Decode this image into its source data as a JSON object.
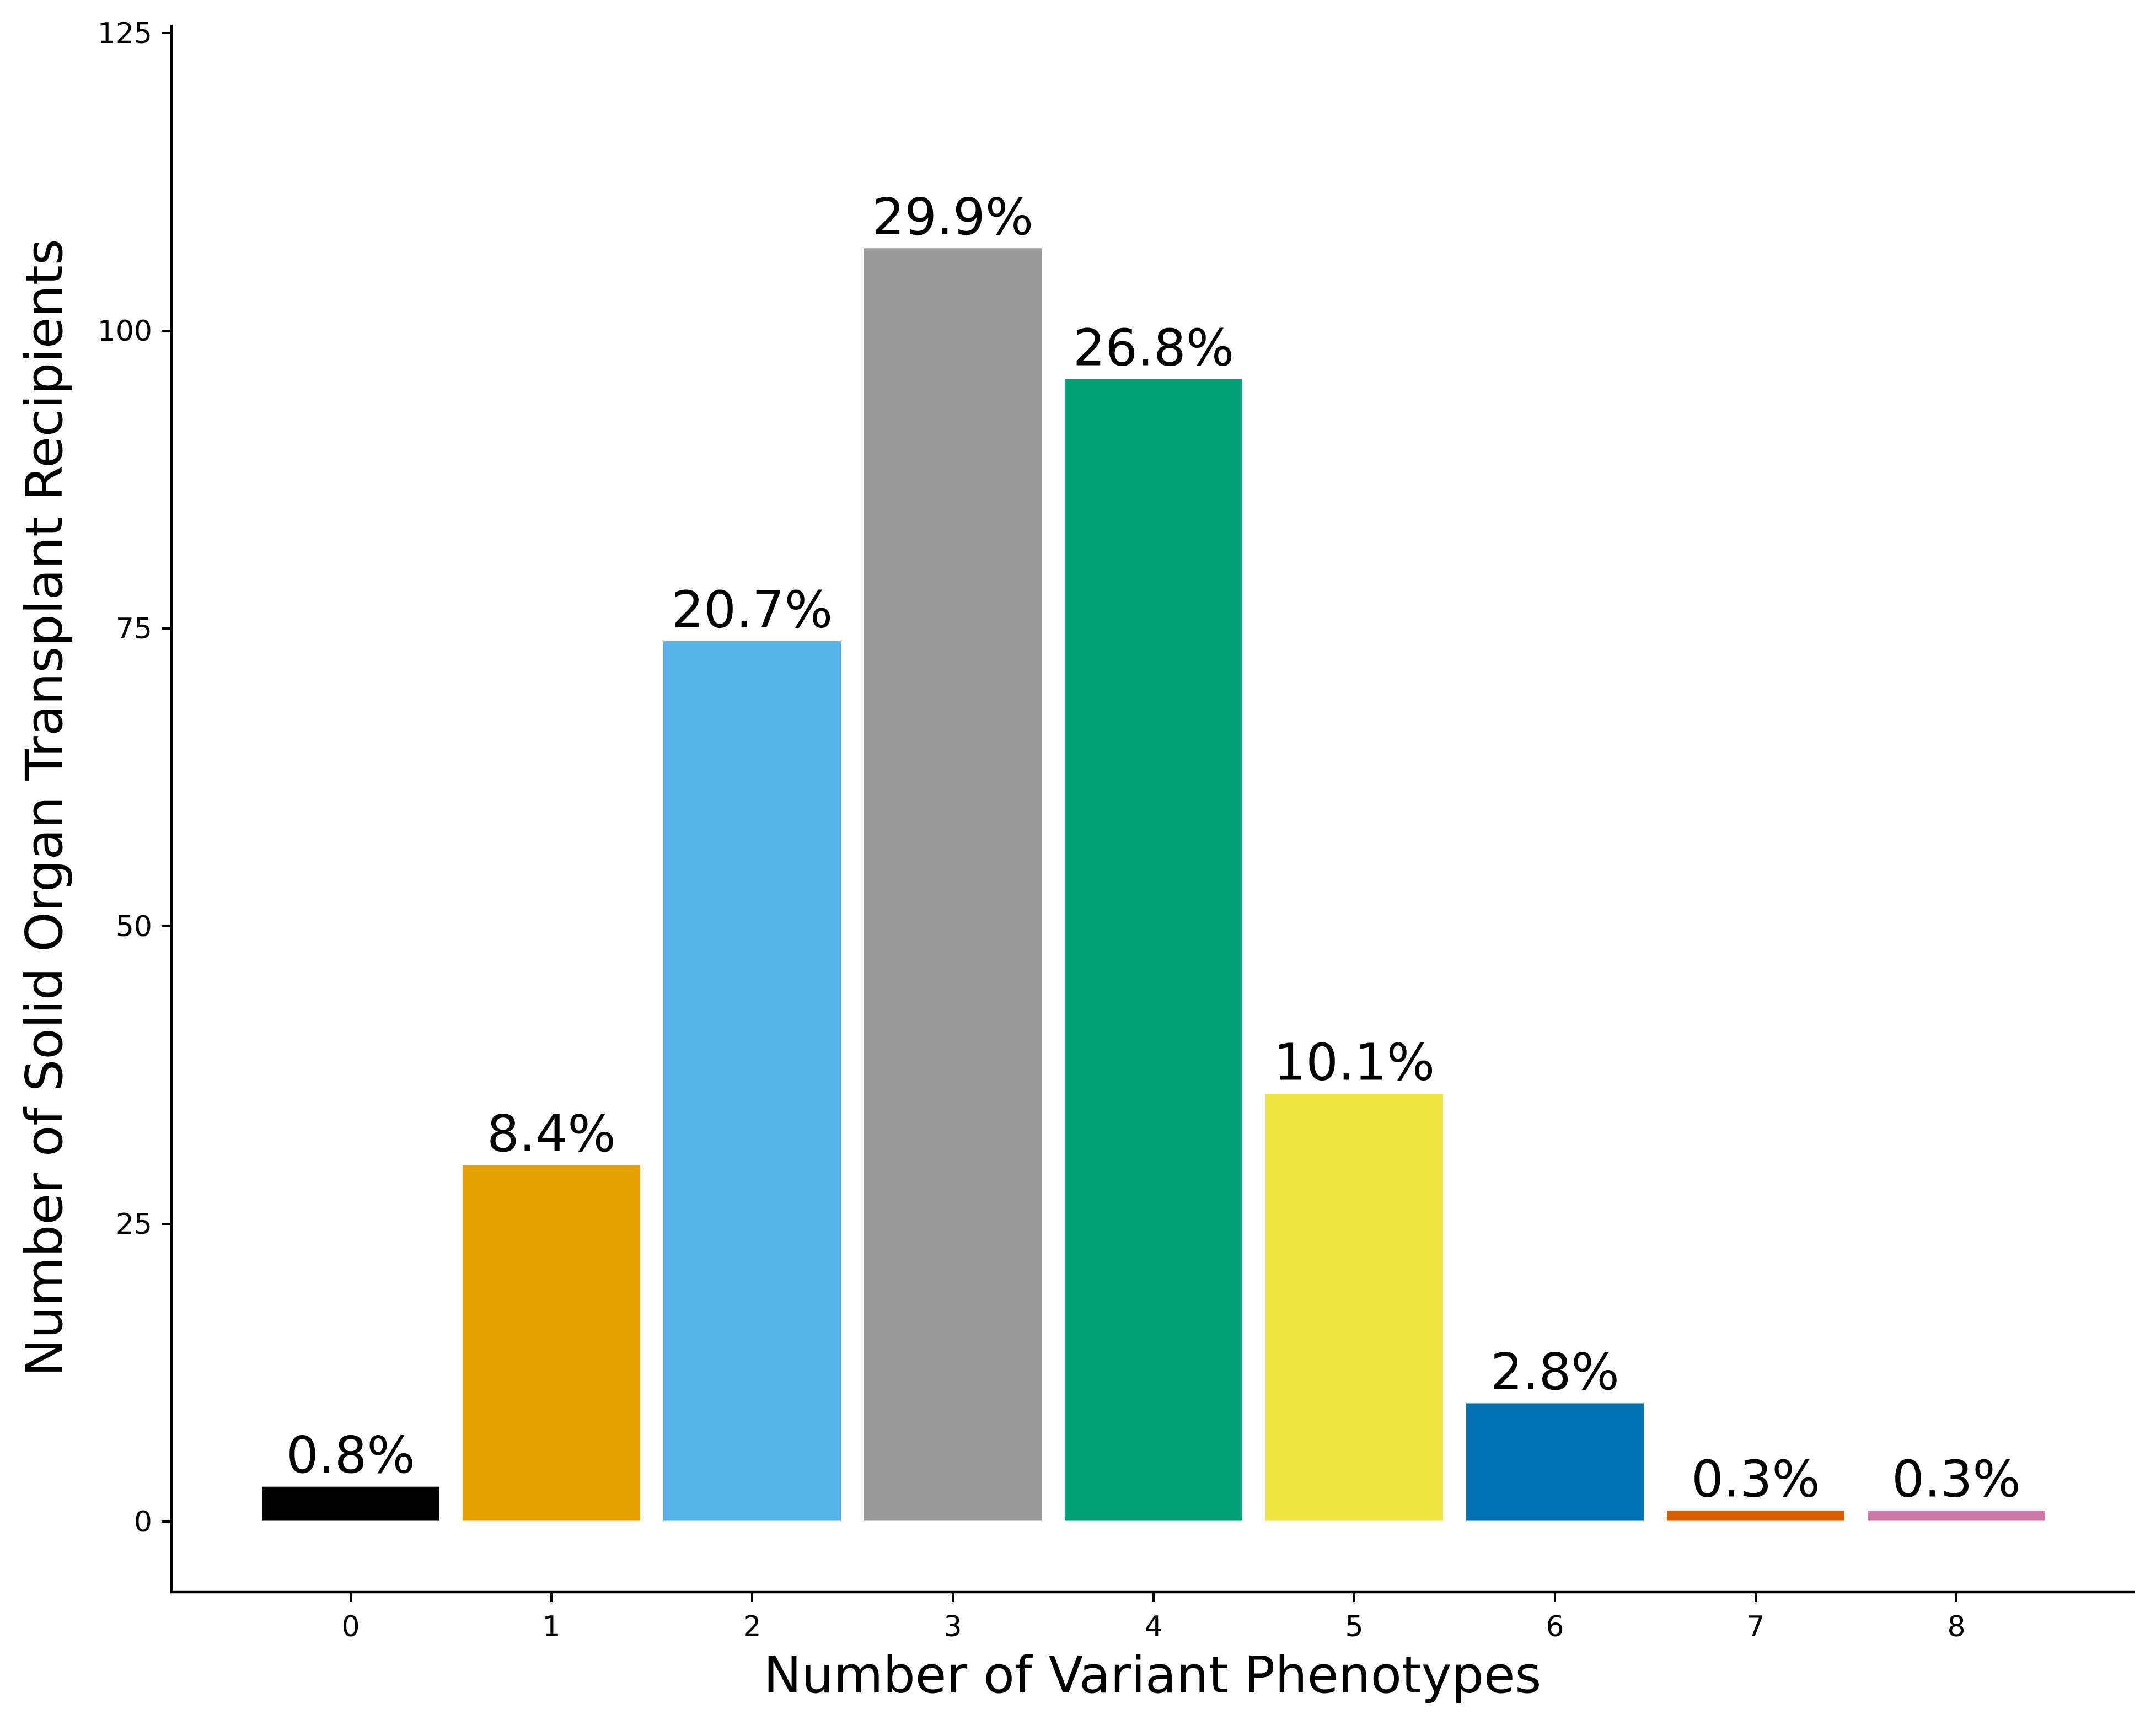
{
  "chart_data": {
    "type": "bar",
    "title": "",
    "xlabel": "Number of Variant Phenotypes",
    "ylabel": "Number of Solid Organ Transplant Recipients",
    "categories": [
      "0",
      "1",
      "2",
      "3",
      "4",
      "5",
      "6",
      "7",
      "8"
    ],
    "values": [
      3,
      30,
      74,
      107,
      96,
      36,
      10,
      1,
      1
    ],
    "data_labels": [
      "0.8%",
      "8.4%",
      "20.7%",
      "29.9%",
      "26.8%",
      "10.1%",
      "2.8%",
      "0.3%",
      "0.3%"
    ],
    "colors": [
      "#000000",
      "#E69F00",
      "#56B4E9",
      "#999999",
      "#009E73",
      "#F0E442",
      "#0072B2",
      "#D55E00",
      "#CC79A7"
    ],
    "ylim": [
      0,
      125
    ],
    "yticks": [
      0,
      25,
      50,
      75,
      100,
      125
    ],
    "grid": false,
    "legend": "none"
  }
}
